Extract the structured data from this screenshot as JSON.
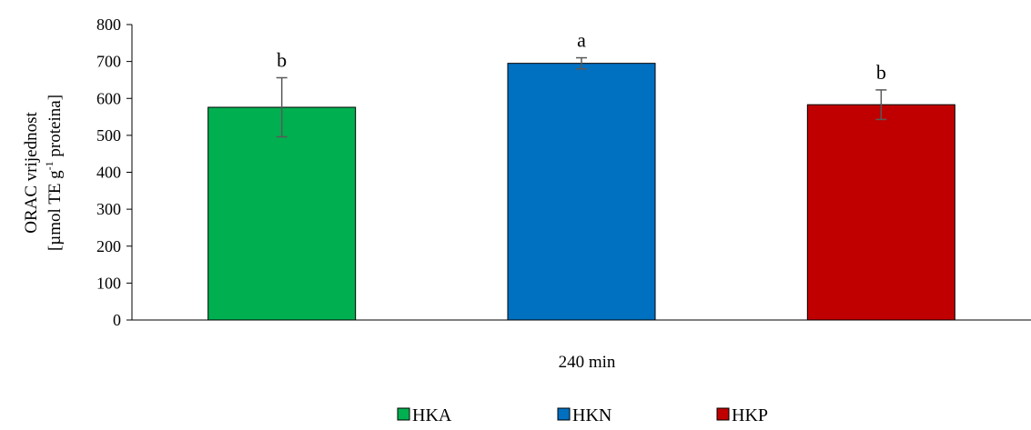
{
  "chart_data": {
    "type": "bar",
    "xlabel": "240 min",
    "ylabel_line1": "ORAC vrijednost",
    "ylabel_line2_prefix": "[µmol TE g",
    "ylabel_line2_sup": "-1",
    "ylabel_line2_suffix": " proteina]",
    "ylim": [
      0,
      800
    ],
    "yticks": [
      0,
      100,
      200,
      300,
      400,
      500,
      600,
      700,
      800
    ],
    "grid": false,
    "legend_position": "bottom",
    "series": [
      {
        "name": "HKA",
        "value": 576,
        "error": 80,
        "significance": "b",
        "color": "#00b050"
      },
      {
        "name": "HKN",
        "value": 695,
        "error": 15,
        "significance": "a",
        "color": "#0070c0"
      },
      {
        "name": "HKP",
        "value": 583,
        "error": 40,
        "significance": "b",
        "color": "#c00000"
      }
    ]
  }
}
